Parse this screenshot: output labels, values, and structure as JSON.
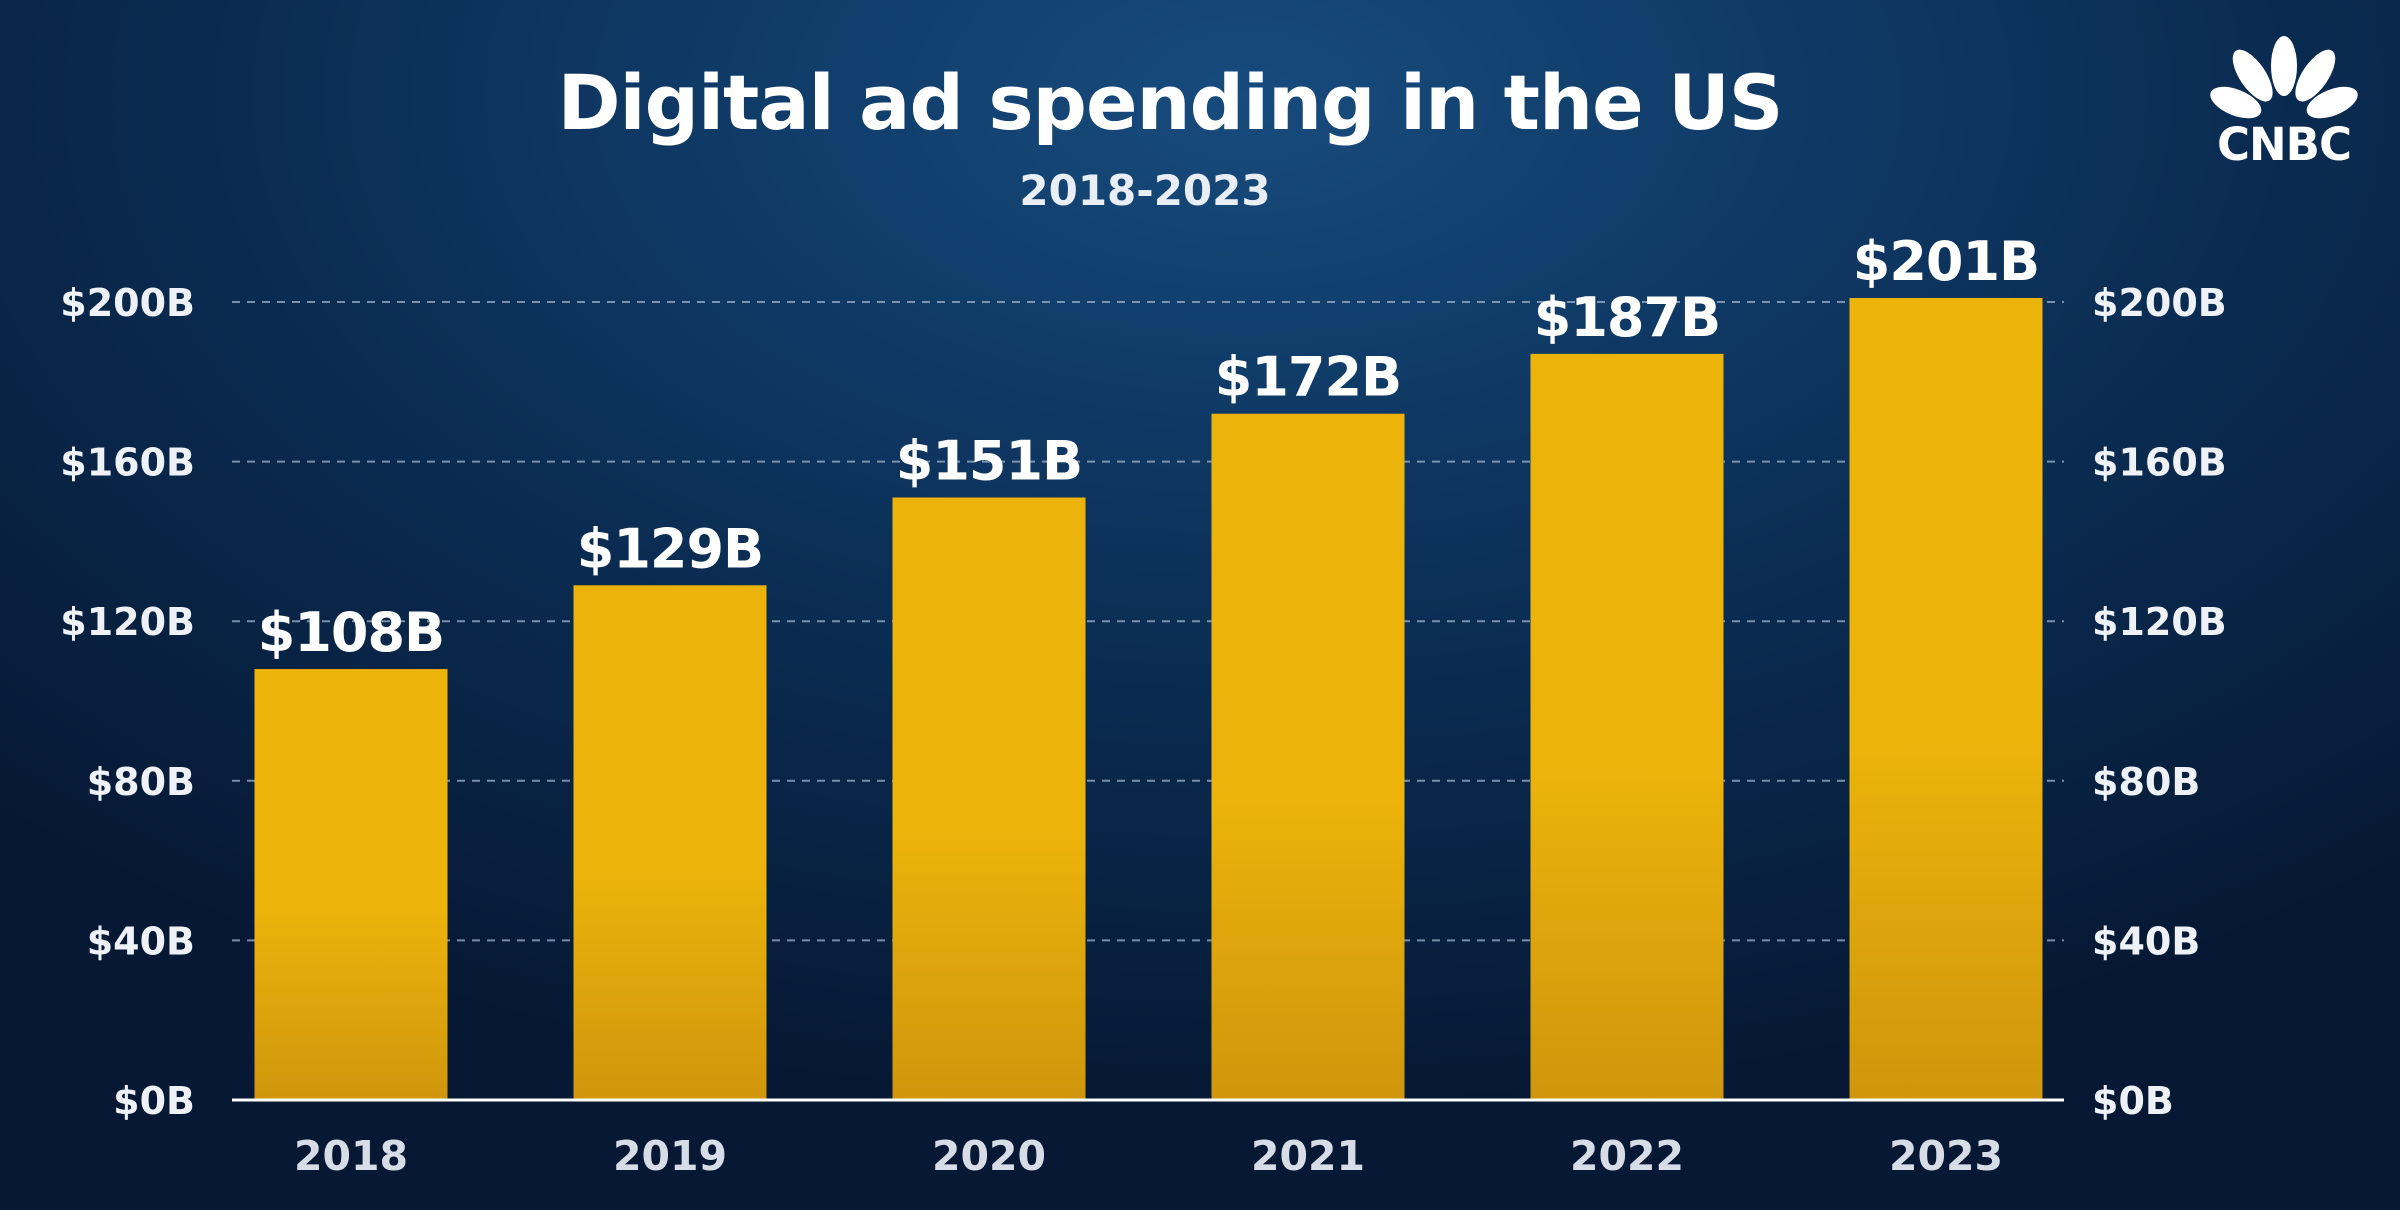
{
  "chart_data": {
    "type": "bar",
    "title": "Digital ad spending in the US",
    "subtitle": "2018-2023",
    "categories": [
      "2018",
      "2019",
      "2020",
      "2021",
      "2022",
      "2023"
    ],
    "values": [
      108,
      129,
      151,
      172,
      187,
      201
    ],
    "data_labels": [
      "$108B",
      "$129B",
      "$151B",
      "$172B",
      "$187B",
      "$201B"
    ],
    "ylim": [
      0,
      200
    ],
    "yticks": [
      0,
      40,
      80,
      120,
      160,
      200
    ],
    "ytick_labels": [
      "$0B",
      "$40B",
      "$80B",
      "$120B",
      "$160B",
      "$200B"
    ],
    "y_axis_sides": "left and right",
    "grid": true,
    "bar_color": "#ecb40b",
    "bar_color_bottom": "#cf960c",
    "background_color": "#0c2d55"
  },
  "branding": {
    "logo_icon": "peacock-icon",
    "logo_text": "CNBC"
  }
}
